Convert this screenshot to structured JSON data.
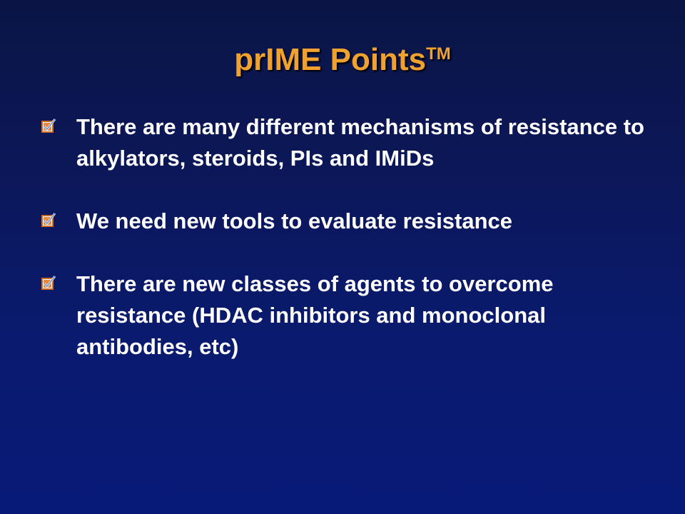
{
  "slide": {
    "title": "prIME Points",
    "title_superscript": "TM",
    "title_color": "#f0a130",
    "text_color": "#ffffff",
    "bullet_icon": "checkbox-checked-icon",
    "bullets": [
      {
        "text": "There are many different mechanisms of resistance to alkylators, steroids, PIs and IMiDs"
      },
      {
        "text": "We need new tools to evaluate resistance"
      },
      {
        "text": "There are new classes of agents to overcome resistance (HDAC inhibitors and monoclonal antibodies, etc)"
      }
    ]
  }
}
